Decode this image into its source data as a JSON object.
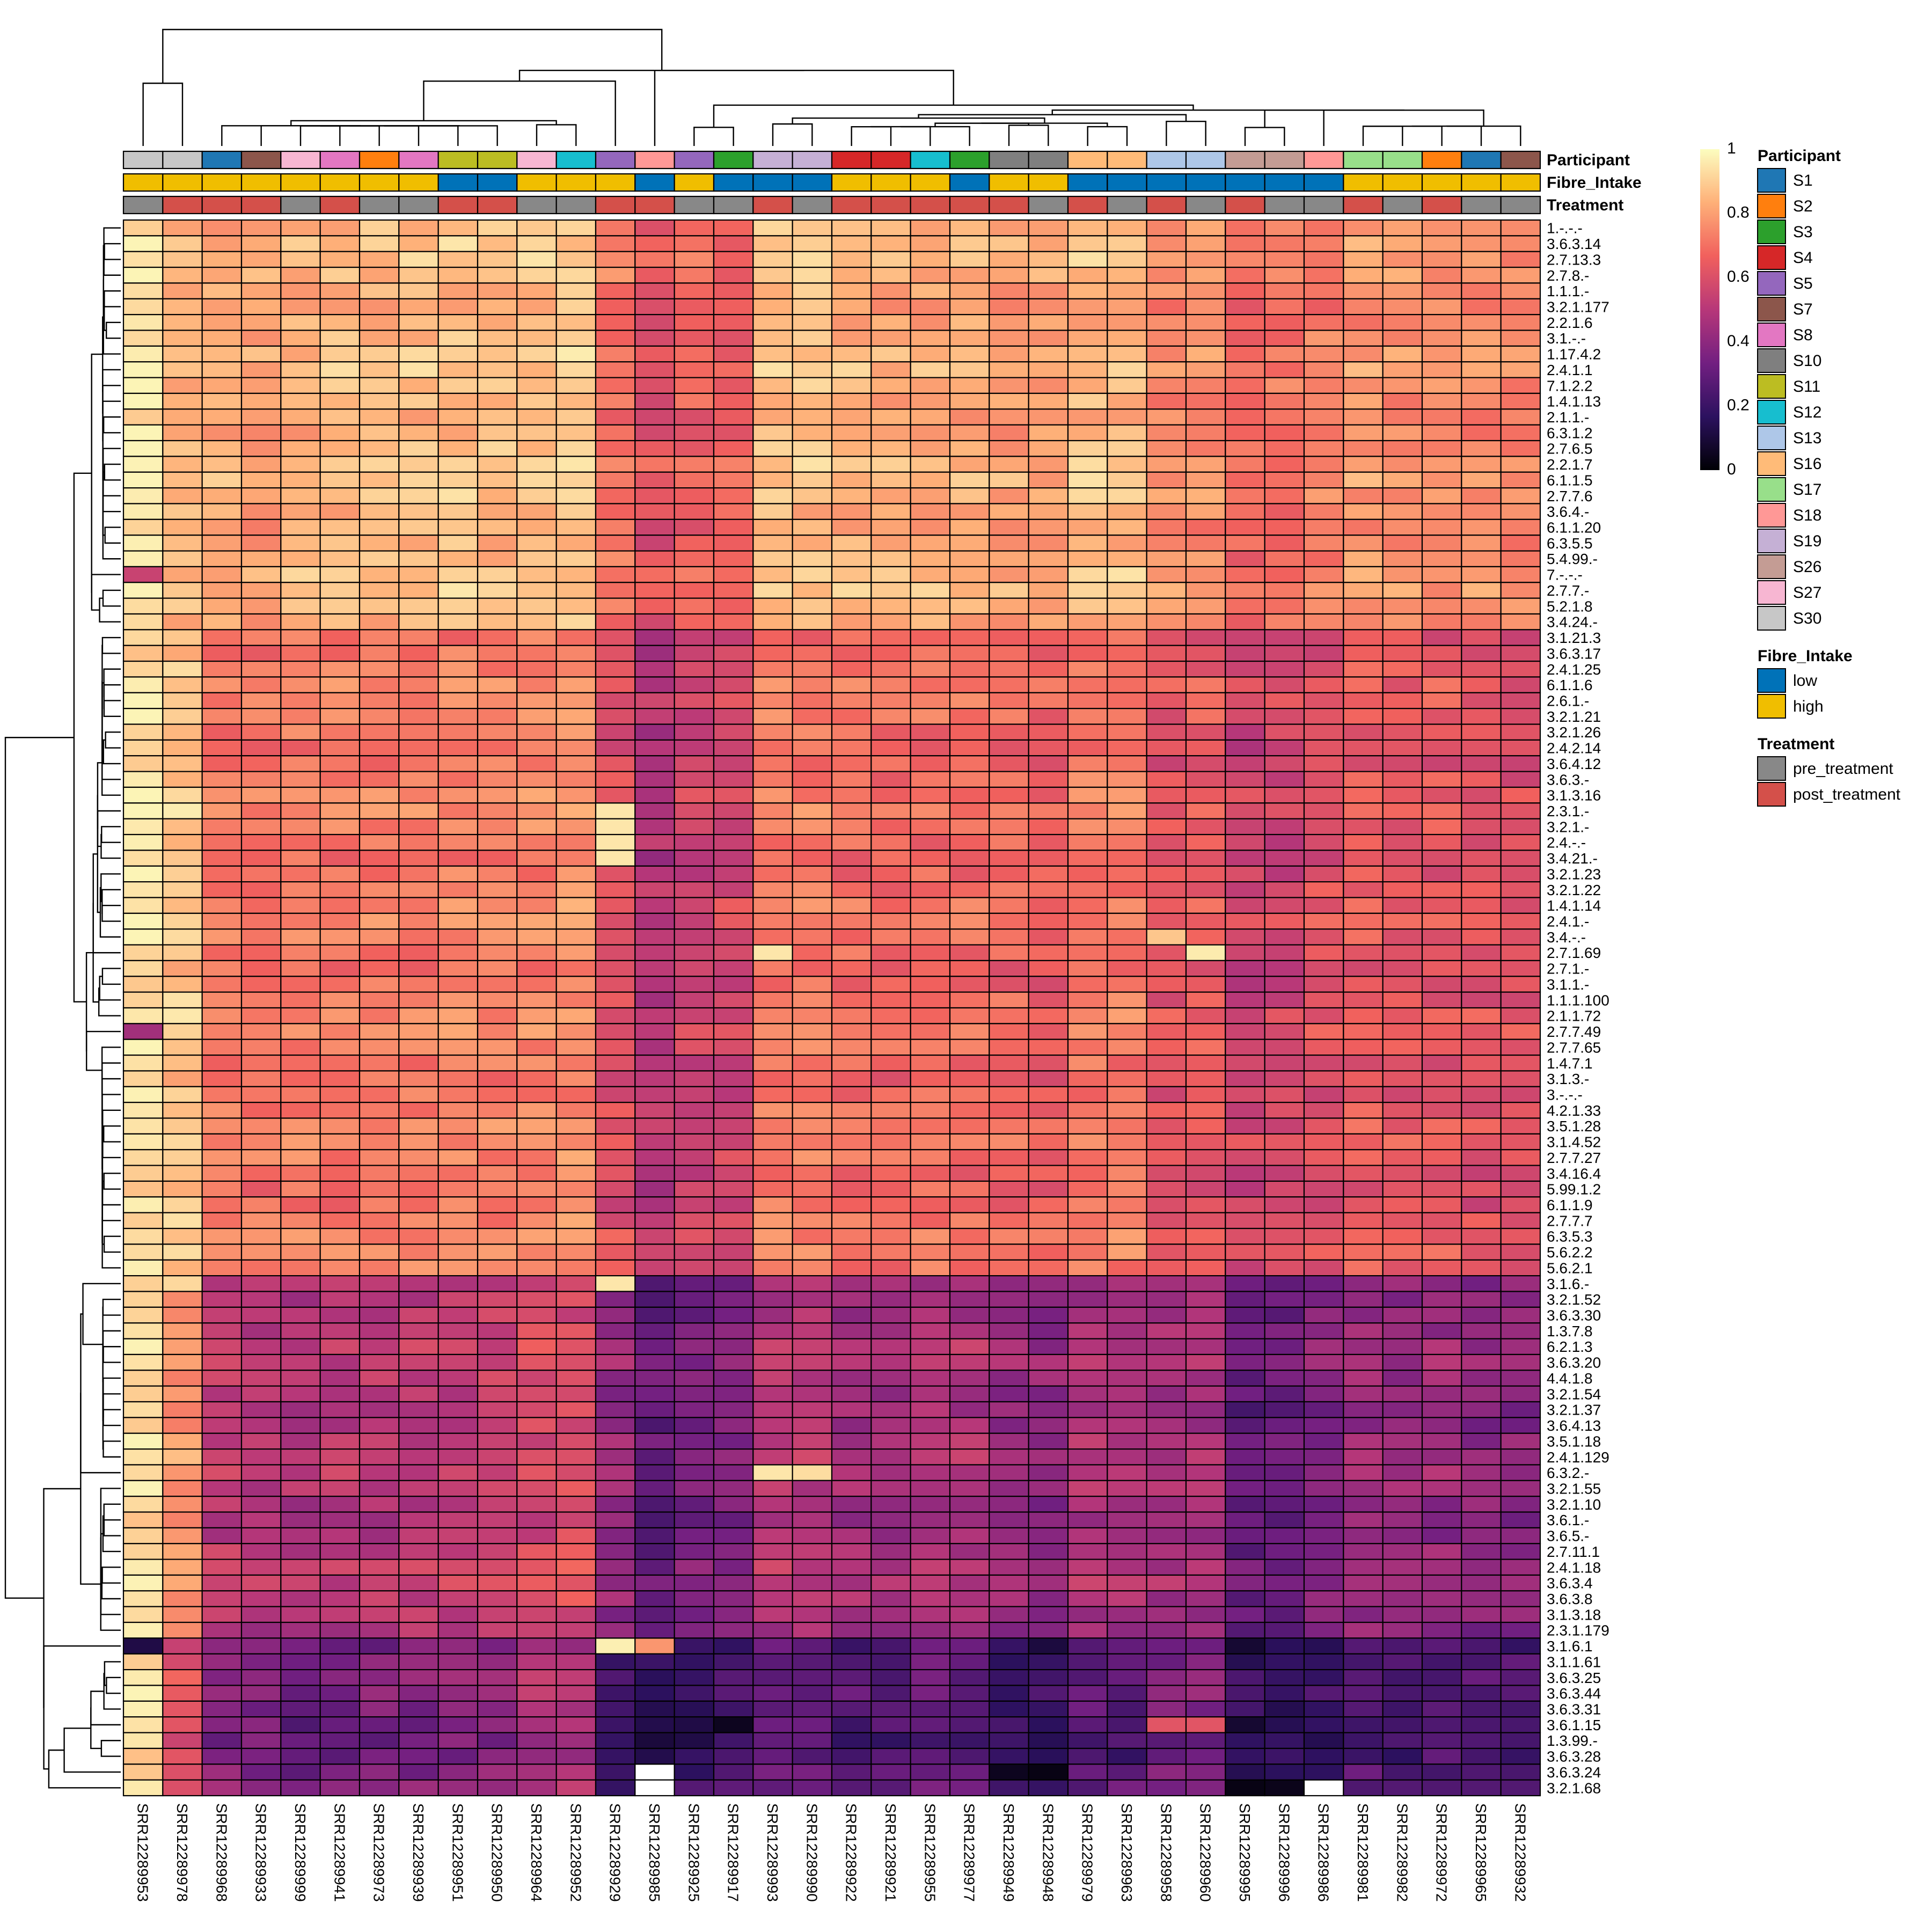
{
  "chart_data": {
    "type": "heatmap",
    "title": "",
    "color_scale": {
      "min": 0,
      "max": 1,
      "ticks": [
        "0",
        "0.2",
        "0.4",
        "0.6",
        "0.8",
        "1"
      ],
      "stops": [
        "#000004",
        "#2c115f",
        "#721f81",
        "#b73779",
        "#f1605d",
        "#feb078",
        "#fcfdbf"
      ]
    },
    "columns": [
      "SRR12289953",
      "SRR12289978",
      "SRR12289968",
      "SRR12289933",
      "SRR12289999",
      "SRR12289941",
      "SRR12289973",
      "SRR12289939",
      "SRR12289951",
      "SRR12289950",
      "SRR12289964",
      "SRR12289952",
      "SRR12289929",
      "SRR12289985",
      "SRR12289925",
      "SRR12289917",
      "SRR12289993",
      "SRR12289990",
      "SRR12289922",
      "SRR12289921",
      "SRR12289955",
      "SRR12289977",
      "SRR12289949",
      "SRR12289948",
      "SRR12289979",
      "SRR12289963",
      "SRR12289958",
      "SRR12289960",
      "SRR12289995",
      "SRR12289996",
      "SRR12289986",
      "SRR12289981",
      "SRR12289982",
      "SRR12289972",
      "SRR12289965",
      "SRR12289932"
    ],
    "rows": [
      "1.-.-.-",
      "3.6.3.14",
      "2.7.13.3",
      "2.7.8.-",
      "1.1.1.-",
      "3.2.1.177",
      "2.2.1.6",
      "3.1.-.-",
      "1.17.4.2",
      "2.4.1.1",
      "7.1.2.2",
      "1.4.1.13",
      "2.1.1.-",
      "6.3.1.2",
      "2.7.6.5",
      "2.2.1.7",
      "6.1.1.5",
      "2.7.7.6",
      "3.6.4.-",
      "6.1.1.20",
      "6.3.5.5",
      "5.4.99.-",
      "7.-.-.-",
      "2.7.7.-",
      "5.2.1.8",
      "3.4.24.-",
      "3.1.21.3",
      "3.6.3.17",
      "2.4.1.25",
      "6.1.1.6",
      "2.6.1.-",
      "3.2.1.21",
      "3.2.1.26",
      "2.4.2.14",
      "3.6.4.12",
      "3.6.3.-",
      "3.1.3.16",
      "2.3.1.-",
      "3.2.1.-",
      "2.4.-.-",
      "3.4.21.-",
      "3.2.1.23",
      "3.2.1.22",
      "1.4.1.14",
      "2.4.1.-",
      "3.4.-.-",
      "2.7.1.69",
      "2.7.1.-",
      "3.1.1.-",
      "1.1.1.100",
      "2.1.1.72",
      "2.7.7.49",
      "2.7.7.65",
      "1.4.7.1",
      "3.1.3.-",
      "3.-.-.-",
      "4.2.1.33",
      "3.5.1.28",
      "3.1.4.52",
      "2.7.7.27",
      "3.4.16.4",
      "5.99.1.2",
      "6.1.1.9",
      "2.7.7.7",
      "6.3.5.3",
      "5.6.2.2",
      "5.6.2.1",
      "3.1.6.-",
      "3.2.1.52",
      "3.6.3.30",
      "1.3.7.8",
      "6.2.1.3",
      "3.6.3.20",
      "4.4.1.8",
      "3.2.1.54",
      "3.2.1.37",
      "3.6.4.13",
      "3.5.1.18",
      "2.4.1.129",
      "6.3.2.-",
      "3.2.1.55",
      "3.2.1.10",
      "3.6.1.-",
      "3.6.5.-",
      "2.7.11.1",
      "2.4.1.18",
      "3.6.3.4",
      "3.6.3.8",
      "3.1.3.18",
      "2.3.1.179",
      "3.1.6.1",
      "3.1.1.61",
      "3.6.3.25",
      "3.6.3.44",
      "3.6.3.31",
      "3.6.1.15",
      "1.3.99.-",
      "3.6.3.28",
      "3.6.3.24",
      "3.2.1.68"
    ],
    "row_blocks": [
      {
        "start": 0,
        "end": 26,
        "base": [
          0.96,
          0.84,
          0.82,
          0.81,
          0.84,
          0.85,
          0.85,
          0.86,
          0.87,
          0.86,
          0.86,
          0.88,
          0.72,
          0.63,
          0.68,
          0.66,
          0.86,
          0.86,
          0.84,
          0.82,
          0.83,
          0.83,
          0.81,
          0.8,
          0.86,
          0.86,
          0.76,
          0.77,
          0.68,
          0.7,
          0.73,
          0.78,
          0.77,
          0.76,
          0.76,
          0.74
        ]
      },
      {
        "start": 26,
        "end": 67,
        "base": [
          0.95,
          0.88,
          0.72,
          0.71,
          0.73,
          0.72,
          0.72,
          0.73,
          0.74,
          0.73,
          0.74,
          0.76,
          0.6,
          0.5,
          0.56,
          0.57,
          0.73,
          0.72,
          0.7,
          0.68,
          0.7,
          0.69,
          0.68,
          0.66,
          0.72,
          0.72,
          0.62,
          0.64,
          0.56,
          0.57,
          0.62,
          0.65,
          0.63,
          0.63,
          0.61,
          0.6
        ]
      },
      {
        "start": 67,
        "end": 90,
        "base": [
          0.95,
          0.78,
          0.52,
          0.5,
          0.49,
          0.5,
          0.51,
          0.52,
          0.54,
          0.55,
          0.58,
          0.6,
          0.42,
          0.3,
          0.35,
          0.37,
          0.5,
          0.5,
          0.46,
          0.45,
          0.49,
          0.48,
          0.43,
          0.4,
          0.48,
          0.47,
          0.45,
          0.47,
          0.3,
          0.32,
          0.38,
          0.44,
          0.42,
          0.42,
          0.4,
          0.4
        ]
      },
      {
        "start": 90,
        "end": 100,
        "base": [
          0.93,
          0.6,
          0.38,
          0.36,
          0.32,
          0.33,
          0.35,
          0.36,
          0.38,
          0.4,
          0.48,
          0.48,
          0.18,
          0.15,
          0.2,
          0.2,
          0.3,
          0.31,
          0.26,
          0.25,
          0.29,
          0.28,
          0.2,
          0.18,
          0.27,
          0.26,
          0.34,
          0.36,
          0.16,
          0.17,
          0.2,
          0.26,
          0.24,
          0.26,
          0.25,
          0.24
        ]
      }
    ],
    "overrides": [
      {
        "row": 90,
        "col": 0,
        "value": 0.12
      },
      {
        "row": 90,
        "col": 12,
        "value": 0.97
      },
      {
        "row": 90,
        "col": 13,
        "value": 0.78
      },
      {
        "row": 98,
        "col": 13,
        "value": 1.0
      },
      {
        "row": 99,
        "col": 13,
        "value": 1.0
      },
      {
        "row": 99,
        "col": 30,
        "value": 1.0
      },
      {
        "row": 79,
        "col": 16,
        "value": 0.95
      },
      {
        "row": 79,
        "col": 17,
        "value": 0.93
      },
      {
        "row": 67,
        "col": 12,
        "value": 0.95
      },
      {
        "row": 67,
        "col": 1,
        "value": 0.92
      },
      {
        "row": 37,
        "col": 12,
        "value": 0.95
      },
      {
        "row": 38,
        "col": 12,
        "value": 0.95
      },
      {
        "row": 39,
        "col": 12,
        "value": 0.95
      },
      {
        "row": 40,
        "col": 12,
        "value": 0.95
      },
      {
        "row": 46,
        "col": 16,
        "value": 0.95
      },
      {
        "row": 46,
        "col": 27,
        "value": 0.96
      },
      {
        "row": 45,
        "col": 26,
        "value": 0.88
      },
      {
        "row": 22,
        "col": 0,
        "value": 0.55
      },
      {
        "row": 51,
        "col": 0,
        "value": 0.45
      },
      {
        "row": 95,
        "col": 26,
        "value": 0.62
      },
      {
        "row": 95,
        "col": 27,
        "value": 0.62
      },
      {
        "row": 95,
        "col": 15,
        "value": 0.05
      },
      {
        "row": 98,
        "col": 22,
        "value": 0.05
      },
      {
        "row": 98,
        "col": 23,
        "value": 0.03
      },
      {
        "row": 99,
        "col": 28,
        "value": 0.03
      },
      {
        "row": 99,
        "col": 29,
        "value": 0.04
      }
    ],
    "annotations": {
      "Participant": [
        "S30",
        "S30",
        "S1",
        "S7",
        "S27",
        "S8",
        "S2",
        "S8",
        "S11",
        "S11",
        "S27",
        "S12",
        "S5",
        "S18",
        "S5",
        "S3",
        "S19",
        "S19",
        "S4",
        "S4",
        "S12",
        "S3",
        "S10",
        "S10",
        "S16",
        "S16",
        "S13",
        "S13",
        "S26",
        "S26",
        "S18",
        "S17",
        "S17",
        "S2",
        "S1",
        "S7"
      ],
      "Fibre_Intake": [
        "high",
        "high",
        "high",
        "high",
        "high",
        "high",
        "high",
        "high",
        "low",
        "low",
        "high",
        "high",
        "high",
        "low",
        "high",
        "low",
        "low",
        "low",
        "high",
        "high",
        "high",
        "low",
        "high",
        "high",
        "low",
        "low",
        "low",
        "low",
        "low",
        "low",
        "low",
        "high",
        "high",
        "high",
        "high",
        "high"
      ],
      "Treatment": [
        "pre_treatment",
        "post_treatment",
        "post_treatment",
        "post_treatment",
        "pre_treatment",
        "post_treatment",
        "pre_treatment",
        "pre_treatment",
        "post_treatment",
        "post_treatment",
        "pre_treatment",
        "pre_treatment",
        "post_treatment",
        "post_treatment",
        "pre_treatment",
        "pre_treatment",
        "post_treatment",
        "pre_treatment",
        "post_treatment",
        "post_treatment",
        "post_treatment",
        "post_treatment",
        "post_treatment",
        "pre_treatment",
        "post_treatment",
        "pre_treatment",
        "post_treatment",
        "pre_treatment",
        "post_treatment",
        "pre_treatment",
        "pre_treatment",
        "post_treatment",
        "pre_treatment",
        "post_treatment",
        "pre_treatment",
        "pre_treatment"
      ]
    },
    "legends": {
      "Participant": {
        "title": "Participant",
        "items": [
          {
            "label": "S1",
            "color": "#1f77b4"
          },
          {
            "label": "S2",
            "color": "#ff7f0e"
          },
          {
            "label": "S3",
            "color": "#2ca02c"
          },
          {
            "label": "S4",
            "color": "#d62728"
          },
          {
            "label": "S5",
            "color": "#9467bd"
          },
          {
            "label": "S7",
            "color": "#8c564b"
          },
          {
            "label": "S8",
            "color": "#e377c2"
          },
          {
            "label": "S10",
            "color": "#7f7f7f"
          },
          {
            "label": "S11",
            "color": "#bcbd22"
          },
          {
            "label": "S12",
            "color": "#17becf"
          },
          {
            "label": "S13",
            "color": "#aec7e8"
          },
          {
            "label": "S16",
            "color": "#ffbb78"
          },
          {
            "label": "S17",
            "color": "#98df8a"
          },
          {
            "label": "S18",
            "color": "#ff9896"
          },
          {
            "label": "S19",
            "color": "#c5b0d5"
          },
          {
            "label": "S26",
            "color": "#c49c94"
          },
          {
            "label": "S27",
            "color": "#f7b6d2"
          },
          {
            "label": "S30",
            "color": "#c7c7c7"
          }
        ]
      },
      "Fibre_Intake": {
        "title": "Fibre_Intake",
        "items": [
          {
            "label": "low",
            "color": "#0072b8"
          },
          {
            "label": "high",
            "color": "#f0be00"
          }
        ]
      },
      "Treatment": {
        "title": "Treatment",
        "items": [
          {
            "label": "pre_treatment",
            "color": "#888888"
          },
          {
            "label": "post_treatment",
            "color": "#d4504a"
          }
        ]
      }
    },
    "annotation_labels": [
      "Participant",
      "Fibre_Intake",
      "Treatment"
    ]
  }
}
